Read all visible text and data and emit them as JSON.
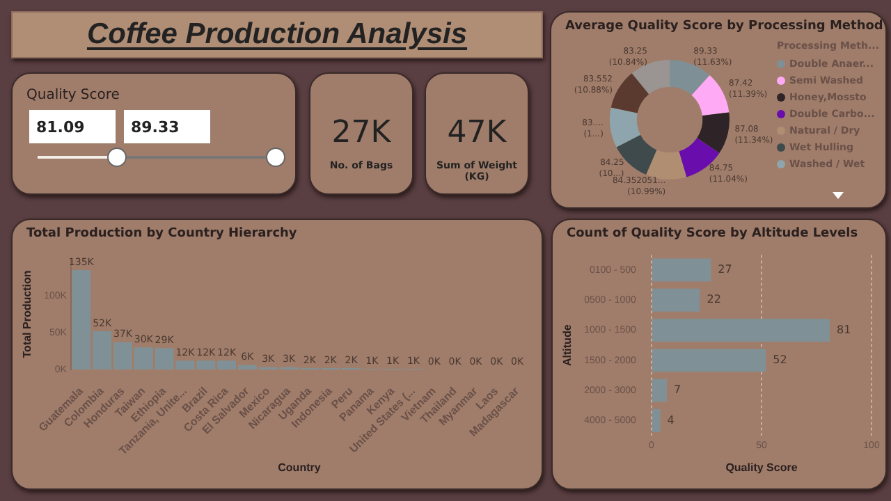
{
  "chart_data": [
    {
      "type": "other",
      "title": "Coffee Production Analysis"
    },
    {
      "type": "other",
      "title": "Quality Score",
      "annotations": [
        "81.09",
        "89.33"
      ]
    },
    {
      "type": "other",
      "annotations": [
        "27K",
        "No. of Bags"
      ]
    },
    {
      "type": "other",
      "annotations": [
        "47K",
        "Sum of Weight (KG)"
      ]
    },
    {
      "type": "donut",
      "title": "Average Quality Score by Processing Method",
      "legend_title": "Processing Meth...",
      "legend": "right",
      "categories": [
        "Double Anaer...",
        "Semi Washed",
        "Honey,Mossto",
        "Double Carbo...",
        "Natural / Dry",
        "Wet Hulling",
        "Washed / Wet",
        null,
        null
      ],
      "values": [
        89.33,
        87.42,
        87.08,
        84.75,
        84.352051,
        84.25,
        83,
        83.552,
        83.25
      ],
      "value_labels": [
        "89.33 (11.63%)",
        "87.42 (11.39%)",
        "87.08 (11.34%)",
        "84.75 (11.04%)",
        "84.352051... (10.99%)",
        "84.25 (10...)",
        "83.... (1...)",
        "83.552 (10.88%)",
        "83.25 (10.84%)"
      ],
      "colors": [
        "#7f8f96",
        "#ffaaf5",
        "#2e2427",
        "#6a0dad",
        "#b08e72",
        "#3f4a4c",
        "#8fa5ad",
        "#5a3a2e",
        "#9a9492"
      ]
    },
    {
      "type": "bar",
      "title": "Total Production by Country Hierarchy",
      "xlabel": "Country",
      "ylabel": "Total Production",
      "color": "#7f9196",
      "categories": [
        "Guatemala",
        "Colombia",
        "Honduras",
        "Taiwan",
        "Ethiopia",
        "Tanzania, Unite...",
        "Brazil",
        "Costa Rica",
        "El Salvador",
        "Mexico",
        "Nicaragua",
        "Uganda",
        "Indonesia",
        "Peru",
        "Panama",
        "Kenya",
        "United States (...",
        "Vietnam",
        "Thailand",
        "Myanmar",
        "Laos",
        "Madagascar"
      ],
      "values": [
        135000,
        52000,
        37000,
        30000,
        29000,
        12000,
        12000,
        12000,
        6000,
        3000,
        3000,
        2000,
        2000,
        2000,
        1000,
        1000,
        1000,
        0,
        0,
        0,
        0,
        0
      ],
      "value_labels": [
        "135K",
        "52K",
        "37K",
        "30K",
        "29K",
        "12K",
        "12K",
        "12K",
        "6K",
        "3K",
        "3K",
        "2K",
        "2K",
        "2K",
        "1K",
        "1K",
        "1K",
        "0K",
        "0K",
        "0K",
        "0K",
        "0K"
      ],
      "ylim": [
        0,
        150000
      ],
      "yticks": [
        {
          "value": 0,
          "label": "0K"
        },
        {
          "value": 50000,
          "label": "50K"
        },
        {
          "value": 100000,
          "label": "100K"
        }
      ]
    },
    {
      "type": "bar",
      "orientation": "horizontal",
      "title": "Count of Quality Score by Altitude Levels",
      "xlabel": "Quality Score",
      "ylabel": "Altitude",
      "color": "#7f9196",
      "categories": [
        "0100 - 500",
        "0500 - 1000",
        "1000 - 1500",
        "1500 - 2000",
        "2000 - 3000",
        "4000 - 5000"
      ],
      "values": [
        27,
        22,
        81,
        52,
        7,
        4
      ],
      "data_labels": true,
      "xlim": [
        0,
        100
      ],
      "xticks": [
        0,
        50,
        100
      ],
      "grid": "x"
    }
  ]
}
